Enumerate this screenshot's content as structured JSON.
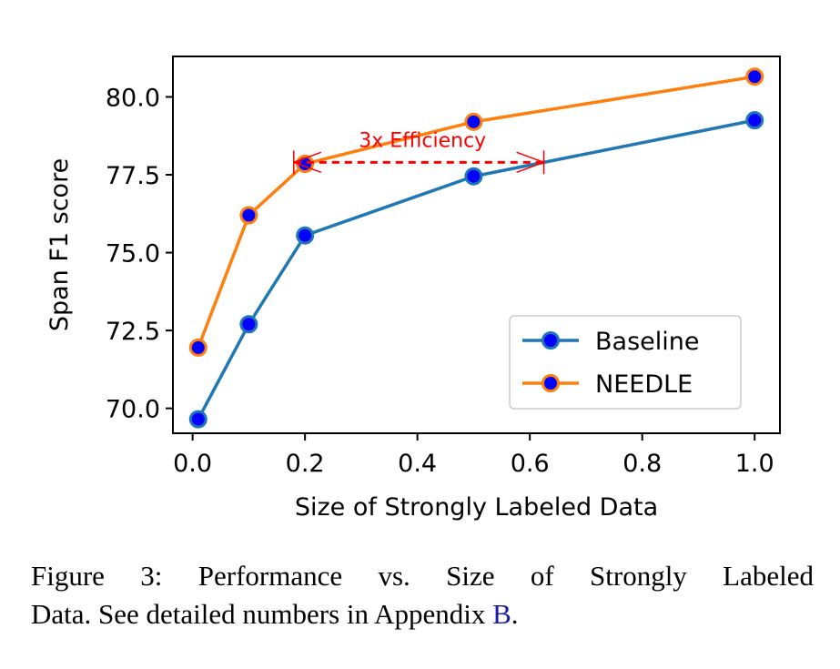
{
  "chart_data": {
    "type": "line",
    "title": "",
    "xlabel": "Size of Strongly Labeled Data",
    "ylabel": "Span F1 score",
    "xlim": [
      -0.035,
      1.045
    ],
    "ylim": [
      69.2,
      81.3
    ],
    "xticks": [
      0.0,
      0.2,
      0.4,
      0.6,
      0.8,
      1.0
    ],
    "xtick_labels": [
      "0.0",
      "0.2",
      "0.4",
      "0.6",
      "0.8",
      "1.0"
    ],
    "yticks": [
      70.0,
      72.5,
      75.0,
      77.5,
      80.0
    ],
    "ytick_labels": [
      "70.0",
      "72.5",
      "75.0",
      "77.5",
      "80.0"
    ],
    "series": [
      {
        "name": "Baseline",
        "color": "#1f77b4",
        "marker_fill": "#0000ff",
        "x": [
          0.01,
          0.1,
          0.2,
          0.5,
          1.0
        ],
        "y": [
          69.65,
          72.7,
          75.55,
          77.45,
          79.25
        ]
      },
      {
        "name": "NEEDLE",
        "color": "#ff7f0e",
        "marker_fill": "#0000ff",
        "x": [
          0.01,
          0.1,
          0.2,
          0.5,
          1.0
        ],
        "y": [
          71.95,
          76.2,
          77.85,
          79.2,
          80.65
        ]
      }
    ],
    "annotation": {
      "text": "3x Efficiency",
      "color": "#ff0000",
      "y": 77.9,
      "x_start": 0.18,
      "x_end": 0.625
    },
    "legend": {
      "position": "lower-right",
      "entries": [
        "Baseline",
        "NEEDLE"
      ]
    },
    "grid": false
  },
  "caption": {
    "line1": "Figure 3: Performance vs. Size of Strongly Labeled",
    "line2_text": "Data. See detailed numbers in Appendix ",
    "line2_ref": "B",
    "line2_end": "."
  }
}
